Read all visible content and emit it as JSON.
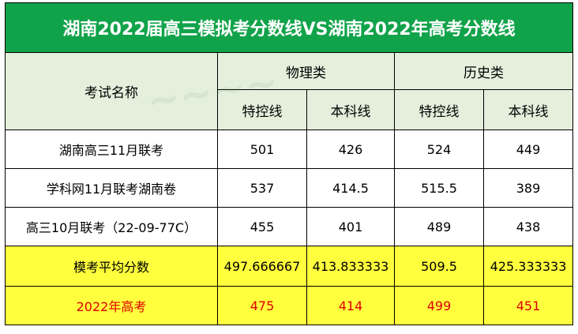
{
  "title": "湖南2022届高三模拟考分数线VS湖南2022年高考分数线",
  "header": {
    "exam_name": "考试名称",
    "groups": [
      "物理类",
      "历史类"
    ],
    "subcols": [
      "特控线",
      "本科线",
      "特控线",
      "本科线"
    ]
  },
  "rows": [
    {
      "name": "湖南高三11月联考",
      "values": [
        "501",
        "426",
        "524",
        "449"
      ]
    },
    {
      "name": "学科网11月联考湖南卷",
      "values": [
        "537",
        "414.5",
        "515.5",
        "389"
      ]
    },
    {
      "name": "高三10月联考（22-09-77C）",
      "values": [
        "455",
        "401",
        "489",
        "438"
      ]
    }
  ],
  "average": {
    "name": "模考平均分数",
    "values": [
      "497.666667",
      "413.833333",
      "509.5",
      "425.333333"
    ]
  },
  "gaokao": {
    "name": "2022年高考",
    "values": [
      "475",
      "414",
      "499",
      "451"
    ]
  },
  "colors": {
    "title_bg": "#11a34a",
    "header_bg": "#e4efdc",
    "highlight_bg": "#ffff3d",
    "gaokao_text": "#e10000"
  }
}
